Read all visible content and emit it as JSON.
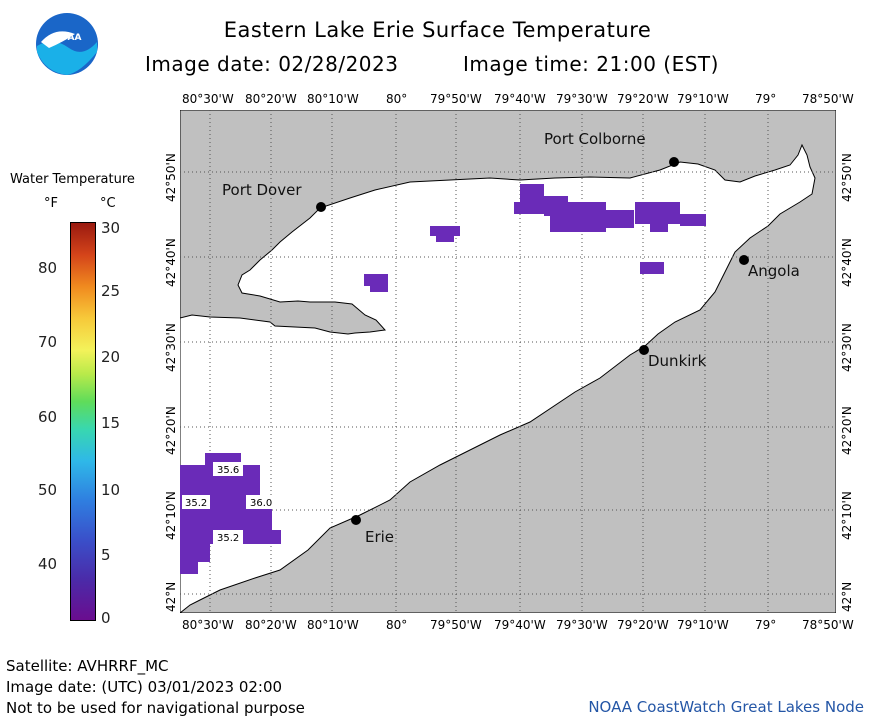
{
  "header": {
    "title": "Eastern Lake Erie Surface Temperature",
    "image_date": "Image date: 02/28/2023",
    "image_time": "Image time: 21:00 (EST)",
    "logo_text": "NOAA"
  },
  "axes": {
    "longitude_labels": [
      "80°30'W",
      "80°20'W",
      "80°10'W",
      "80°",
      "79°50'W",
      "79°40'W",
      "79°30'W",
      "79°20'W",
      "79°10'W",
      "79°",
      "78°50'W"
    ],
    "latitude_labels": [
      "42°N",
      "42°10'N",
      "42°20'N",
      "42°30'N",
      "42°40'N",
      "42°50'N"
    ]
  },
  "legend": {
    "title": "Water Temperature",
    "unit_f": "°F",
    "unit_c": "°C",
    "f_ticks": [
      "80",
      "70",
      "60",
      "50",
      "40"
    ],
    "c_ticks": [
      "30",
      "25",
      "20",
      "15",
      "10",
      "5",
      "0"
    ]
  },
  "places": [
    {
      "name": "Port Colborne"
    },
    {
      "name": "Port Dover"
    },
    {
      "name": "Angola"
    },
    {
      "name": "Dunkirk"
    },
    {
      "name": "Erie"
    }
  ],
  "temperature_labels": [
    "35.6",
    "35.2",
    "36.0",
    "35.2"
  ],
  "footer": {
    "satellite": "Satellite: AVHRRF_MC",
    "utc_date": "Image date: (UTC) 03/01/2023  02:00",
    "disclaimer": "Not to be used for navigational purpose",
    "credit": "NOAA CoastWatch Great Lakes Node"
  },
  "colors": {
    "land": "#c0c0c0",
    "water": "#ffffff",
    "cold_water": "#6a2bb8",
    "credit_text": "#2456a6"
  }
}
